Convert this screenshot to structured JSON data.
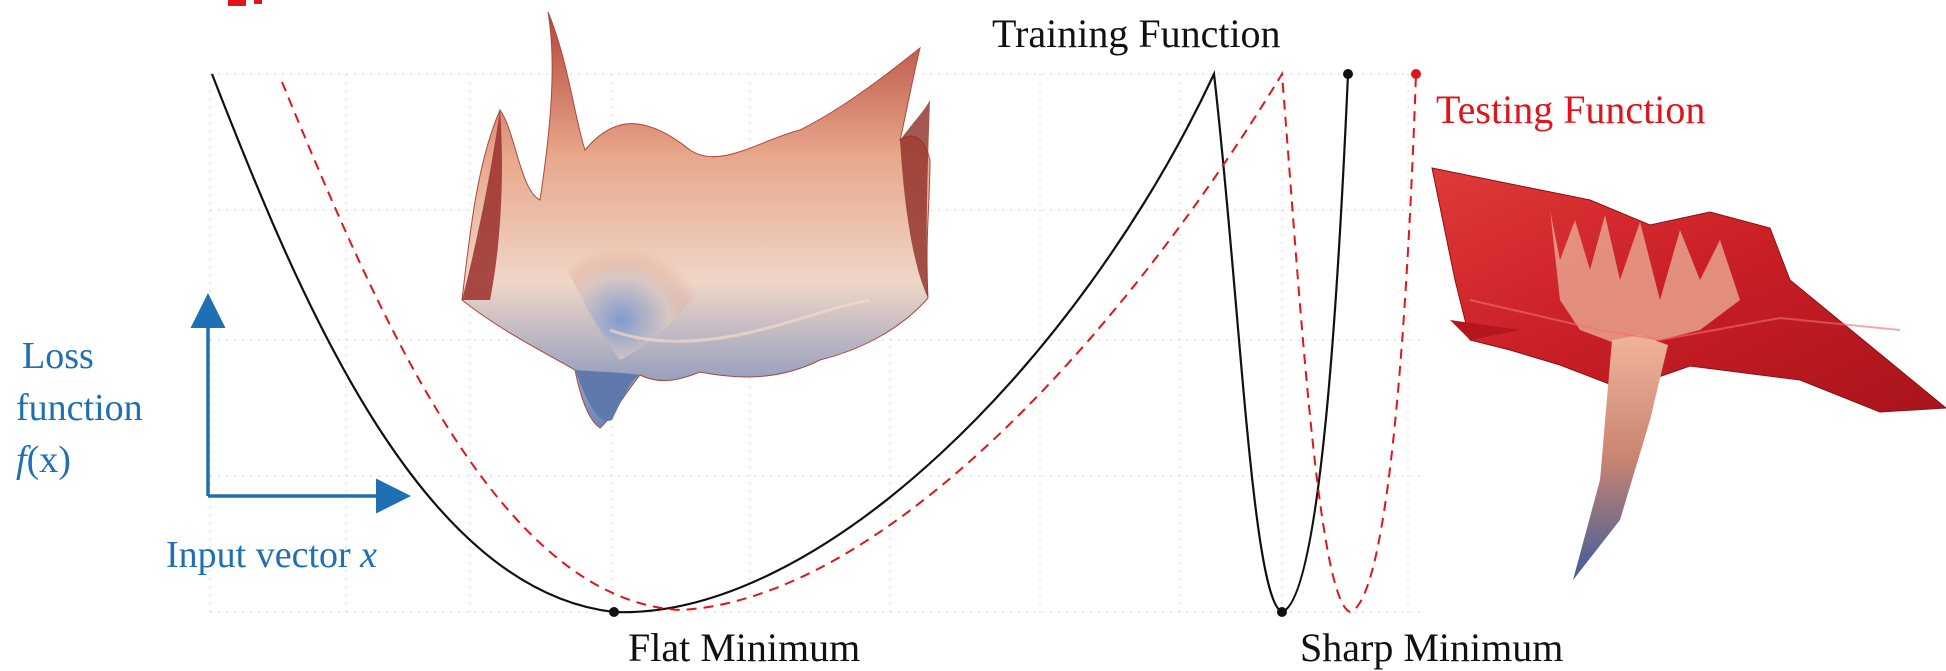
{
  "labels": {
    "training_function": "Training Function",
    "testing_function": "Testing Function",
    "flat_minimum": "Flat Minimum",
    "sharp_minimum": "Sharp Minimum",
    "loss_line1": "Loss",
    "loss_line2": "function",
    "loss_line3_pre": "f",
    "loss_line3_post": "(x)",
    "input_vector": "Input vector ",
    "input_var": "x"
  },
  "colors": {
    "training": "#111111",
    "testing": "#e0141b",
    "axis": "#1f6fb4",
    "flat_surface_low": "#6b86b8",
    "flat_surface_high": "#c76a50",
    "sharp_surface": "#d4202a"
  },
  "icons": [
    "up-arrow-icon",
    "right-arrow-icon",
    "flat-loss-surface-icon",
    "sharp-loss-surface-icon"
  ]
}
